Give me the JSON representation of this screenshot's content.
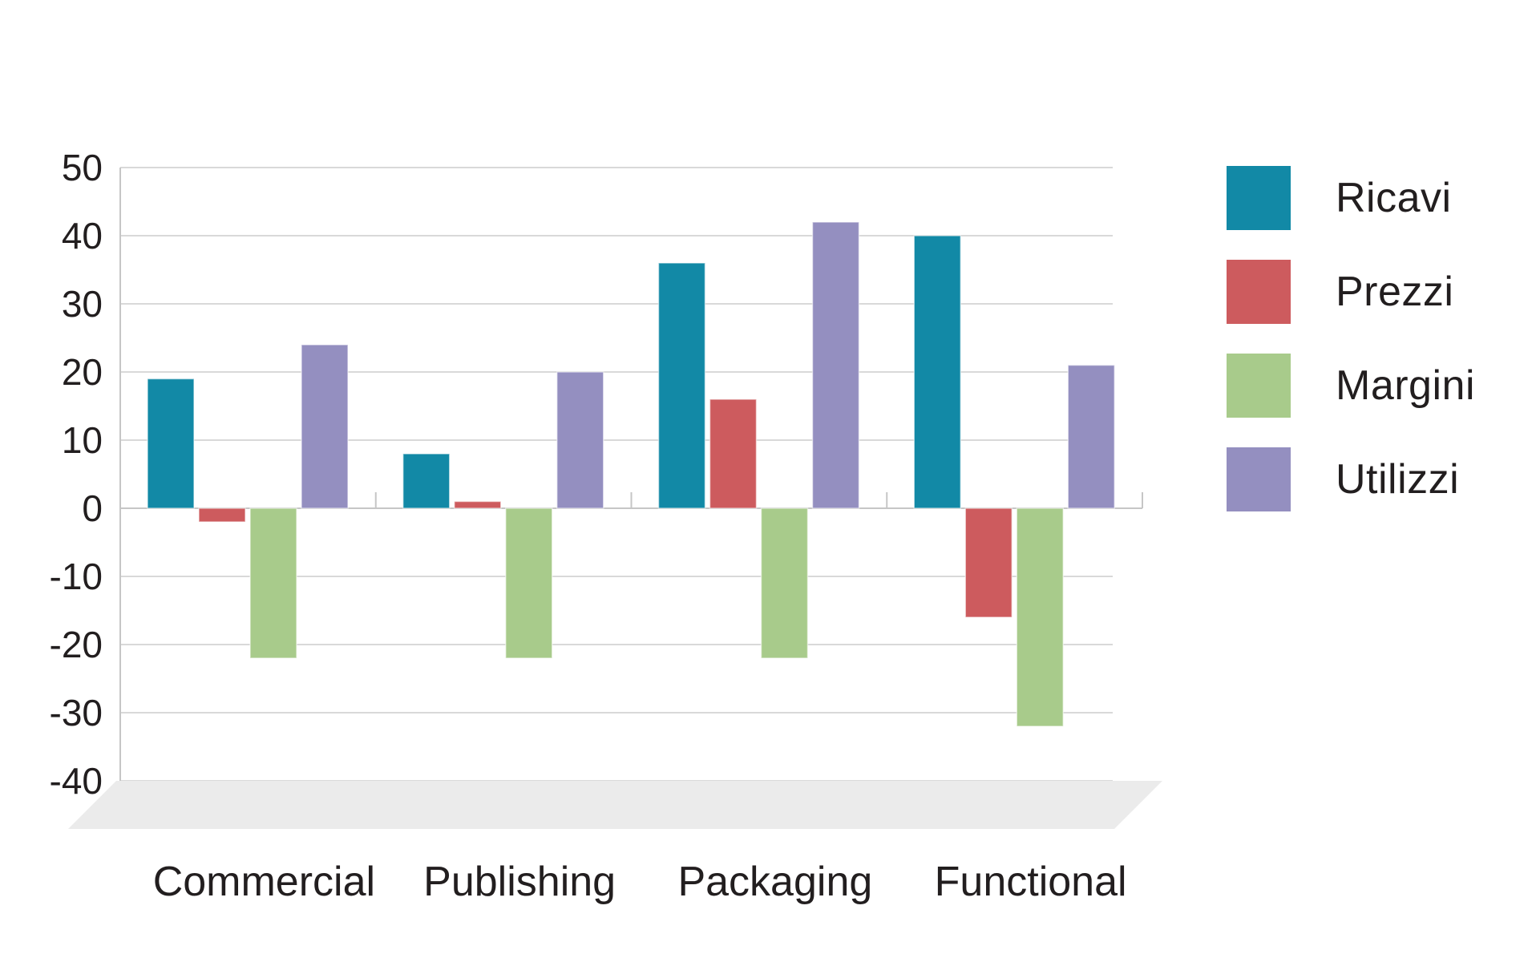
{
  "chart_data": {
    "type": "bar",
    "title": "",
    "xlabel": "",
    "ylabel": "",
    "categories": [
      "Commercial",
      "Publishing",
      "Packaging",
      "Functional"
    ],
    "series": [
      {
        "name": "Ricavi",
        "color": "#1289a6",
        "values": [
          19,
          8,
          36,
          40
        ]
      },
      {
        "name": "Prezzi",
        "color": "#cd5b5e",
        "values": [
          -2,
          1,
          16,
          -16
        ]
      },
      {
        "name": "Margini",
        "color": "#a8cb8b",
        "values": [
          -22,
          -22,
          -22,
          -32
        ]
      },
      {
        "name": "Utilizzi",
        "color": "#948fc0",
        "values": [
          24,
          20,
          42,
          21
        ]
      }
    ],
    "ylim": [
      -40,
      50
    ],
    "yticks": [
      50,
      40,
      30,
      20,
      10,
      0,
      -10,
      -20,
      -30,
      -40
    ],
    "grid": true,
    "legend_position": "right"
  },
  "legend": {
    "items": [
      {
        "label": "Ricavi",
        "color": "#1289a6"
      },
      {
        "label": "Prezzi",
        "color": "#cd5b5e"
      },
      {
        "label": "Margini",
        "color": "#a8cb8b"
      },
      {
        "label": "Utilizzi",
        "color": "#948fc0"
      }
    ]
  },
  "style": {
    "background": "#ffffff",
    "grid_color": "#d9d9d9",
    "axis_color": "#c6c6c6",
    "floor_color": "#ebebeb",
    "text_color": "#221e1f"
  }
}
